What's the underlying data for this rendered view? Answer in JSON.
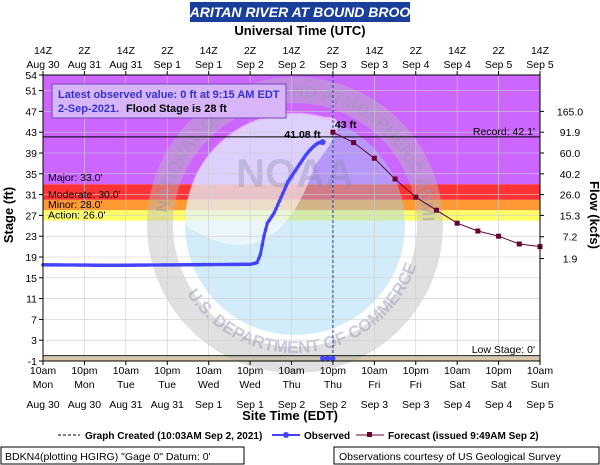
{
  "chart_data": {
    "type": "line",
    "title": "RARITAN RIVER AT BOUND BROOK",
    "top_axis_title": "Universal Time (UTC)",
    "top_ticks_hour": [
      "14Z",
      "2Z",
      "14Z",
      "2Z",
      "14Z",
      "2Z",
      "14Z",
      "2Z",
      "14Z",
      "2Z",
      "14Z",
      "2Z",
      "14Z"
    ],
    "top_ticks_date": [
      "Aug 30",
      "Aug 31",
      "Aug 31",
      "Sep 1",
      "Sep 1",
      "Sep 2",
      "Sep 2",
      "Sep 3",
      "Sep 3",
      "Sep 4",
      "Sep 4",
      "Sep 5",
      "Sep 5"
    ],
    "bottom_ticks_time": [
      "10am",
      "10pm",
      "10am",
      "10pm",
      "10am",
      "10pm",
      "10am",
      "10pm",
      "10am",
      "10pm",
      "10am",
      "10pm",
      "10am"
    ],
    "bottom_ticks_day": [
      "Mon",
      "Mon",
      "Tue",
      "Tue",
      "Wed",
      "Wed",
      "Thu",
      "Thu",
      "Fri",
      "Fri",
      "Sat",
      "Sat",
      "Sun"
    ],
    "bottom_ticks_date": [
      "Aug 30",
      "Aug 30",
      "Aug 31",
      "Aug 31",
      "Sep 1",
      "Sep 1",
      "Sep 2",
      "Sep 2",
      "Sep 3",
      "Sep 3",
      "Sep 4",
      "Sep 4",
      "Sep 5"
    ],
    "xlabel": "Site Time (EDT)",
    "ylabel": "Stage (ft)",
    "y2label": "Flow (kcfs)",
    "y_ticks": [
      -1,
      3,
      7,
      11,
      15,
      19,
      23,
      27,
      31,
      35,
      39,
      43,
      47,
      51,
      54
    ],
    "ylim": [
      -1,
      54
    ],
    "xlim_hours": [
      0,
      144
    ],
    "flow_ticks": [
      {
        "label": "1.9",
        "stage": 18.7
      },
      {
        "label": "7.2",
        "stage": 22.9
      },
      {
        "label": "15.3",
        "stage": 27.0
      },
      {
        "label": "26.0",
        "stage": 31.0
      },
      {
        "label": "40.2",
        "stage": 35.0
      },
      {
        "label": "60.0",
        "stage": 39.0
      },
      {
        "label": "91.9",
        "stage": 43.0
      },
      {
        "label": "165.0",
        "stage": 47.0
      }
    ],
    "bands": [
      {
        "name": "Action",
        "from": 26,
        "to": 28,
        "color": "#ffff66"
      },
      {
        "name": "Minor",
        "from": 28,
        "to": 30,
        "color": "#ff9933"
      },
      {
        "name": "Moderate",
        "from": 30,
        "to": 33,
        "color": "#ff3333"
      },
      {
        "name": "Major",
        "from": 33,
        "to": 54,
        "color": "#cc66ff"
      }
    ],
    "band_labels": [
      "Action: 26.0'",
      "Minor: 28.0'",
      "Moderate: 30.0'",
      "Major: 33.0'"
    ],
    "record": {
      "label": "Record: 42.1'",
      "value": 42.1
    },
    "low_stage": {
      "label": "Low Stage: 0'",
      "value": 0
    },
    "annotation": {
      "line1": "Latest observed value: 0 ft at 9:15 AM EDT",
      "line2_bold": "2-Sep-2021.",
      "line2_rest": "  Flood Stage is 28 ft"
    },
    "peak_observed_label": "41.08 ft",
    "peak_forecast_label": "43 ft",
    "series": [
      {
        "name": "Observed",
        "color": "#4444ff",
        "x_hours": [
          0,
          20,
          40,
          60,
          62,
          63,
          64,
          65,
          66,
          67,
          68,
          69,
          70,
          71,
          72,
          73,
          74,
          75,
          76,
          77,
          78,
          79,
          80,
          81
        ],
        "values": [
          17.5,
          17.4,
          17.5,
          17.6,
          17.9,
          19.5,
          23,
          25.5,
          26.5,
          27.5,
          29,
          30.5,
          32,
          33.5,
          34.5,
          35.5,
          36.5,
          37.5,
          38.5,
          39.3,
          40,
          40.6,
          41.0,
          41.08
        ],
        "drop_to_zero": {
          "x_hours_start": 81,
          "x_hours_end": 84,
          "value": -0.5
        }
      },
      {
        "name": "Forecast",
        "color": "#660033",
        "x_hours": [
          84,
          90,
          96,
          102,
          108,
          114,
          120,
          126,
          132,
          138,
          144
        ],
        "values": [
          43,
          41.0,
          38.0,
          34.0,
          30.5,
          28.0,
          25.5,
          24.0,
          23.0,
          21.5,
          21.0
        ]
      }
    ],
    "graph_created_hours": 84,
    "legend": {
      "created": "Graph Created (10:03AM Sep 2, 2021)",
      "observed": "Observed",
      "forecast": "Forecast (issued 9:49AM Sep 2)"
    }
  },
  "footer": {
    "left": "BDKN4(plotting HGIRG) \"Gage 0\" Datum: 0'",
    "right": "Observations courtesy of US Geological Survey"
  },
  "watermark": {
    "ring_text_top": "NATIONAL OCEANIC AND ATMOSPHERIC ADMINISTRATION",
    "ring_text_bottom": "U.S. DEPARTMENT OF COMMERCE",
    "center_text": "NOAA"
  }
}
